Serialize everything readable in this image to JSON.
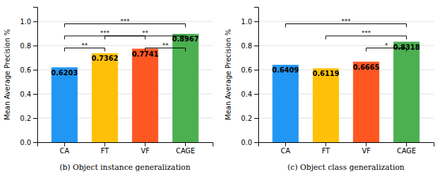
{
  "chart_data": [
    {
      "type": "bar",
      "categories": [
        "CA",
        "FT",
        "VF",
        "CAGE"
      ],
      "values": [
        0.6203,
        0.7362,
        0.7741,
        0.8967
      ],
      "colors": [
        "#2196F3",
        "#FFC107",
        "#FF5722",
        "#4CAF50"
      ],
      "ylabel": "Mean Average Precision %",
      "subtitle": "(b) Object instance generalization",
      "ylim": [
        0,
        1.12
      ],
      "yticks": [
        {
          "value": 0,
          "label": "0.0"
        },
        0.2,
        0.4,
        0.6,
        0.8,
        {
          "value": 1,
          "label": "1.0"
        }
      ],
      "grid": true,
      "data_labels": true,
      "significance": [
        {
          "x1": "CA",
          "x2": "FT",
          "y": 0.78,
          "text": "**"
        },
        {
          "x1": "CA",
          "x2": "VF",
          "y": 0.88,
          "text": "***"
        },
        {
          "x1": "CA",
          "x2": "CAGE",
          "y": 0.98,
          "text": "***"
        },
        {
          "x1": "VF",
          "x2": "CAGE",
          "y": 0.78,
          "text": "**"
        },
        {
          "x1": "FT",
          "x2": "CAGE",
          "y": 0.88,
          "text": "**"
        }
      ]
    },
    {
      "type": "bar",
      "categories": [
        "CA",
        "FT",
        "VF",
        "CAGE"
      ],
      "values": [
        0.6409,
        0.6119,
        0.6665,
        0.8318
      ],
      "colors": [
        "#2196F3",
        "#FFC107",
        "#FF5722",
        "#4CAF50"
      ],
      "ylabel": "Mean Average Precision %",
      "subtitle": "(c) Object class generalization",
      "ylim": [
        0,
        1.12
      ],
      "yticks": [
        {
          "value": 0,
          "label": "0.0"
        },
        0.2,
        0.4,
        0.6,
        0.8,
        {
          "value": 1,
          "label": "1.0"
        }
      ],
      "grid": true,
      "data_labels": true,
      "significance": [
        {
          "x1": "CA",
          "x2": "CAGE",
          "y": 0.98,
          "text": "***"
        },
        {
          "x1": "FT",
          "x2": "CAGE",
          "y": 0.88,
          "text": "***"
        },
        {
          "x1": "VF",
          "x2": "CAGE",
          "y": 0.78,
          "text": "*"
        }
      ]
    }
  ]
}
